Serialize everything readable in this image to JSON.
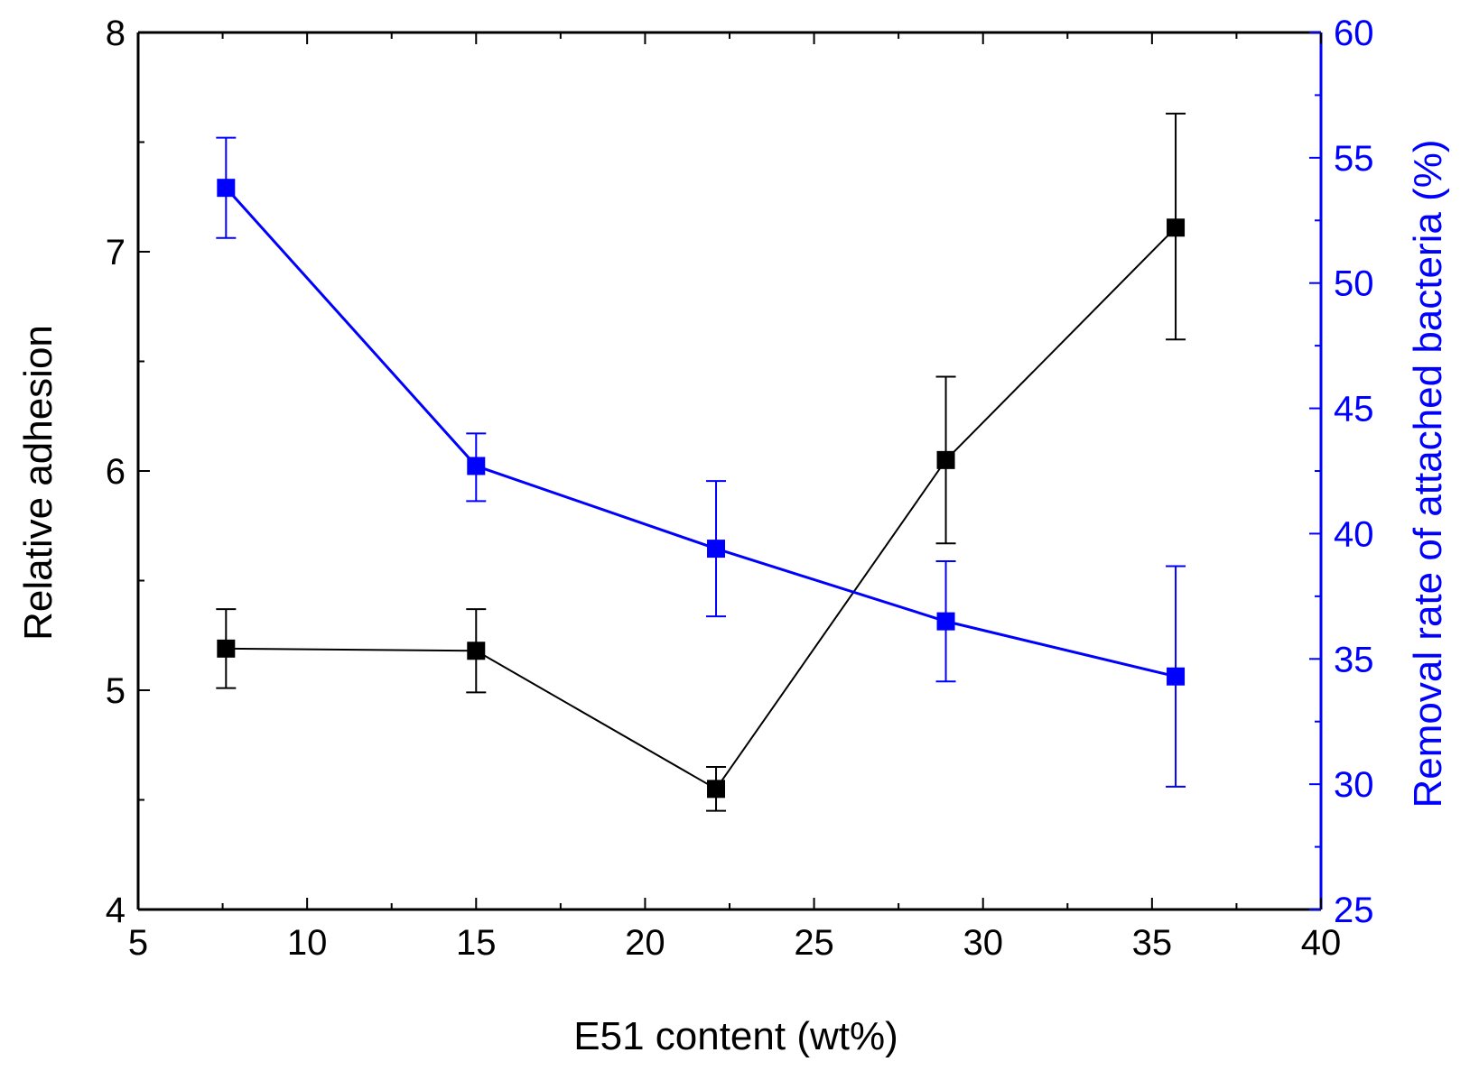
{
  "chart_data": {
    "type": "line",
    "title": "",
    "xlabel": "E51 content (wt%)",
    "ylabel_left": "Relative adhesion",
    "ylabel_right": "Removal rate of attached bacteria (%)",
    "xlim": [
      5,
      40
    ],
    "ylim_left": [
      4,
      8
    ],
    "ylim_right": [
      25,
      60
    ],
    "x_ticks": [
      "5",
      "10",
      "15",
      "20",
      "25",
      "30",
      "35",
      "40"
    ],
    "y_left_ticks": [
      "4",
      "5",
      "6",
      "7",
      "8"
    ],
    "y_right_ticks": [
      "25",
      "30",
      "35",
      "40",
      "45",
      "50",
      "55",
      "60"
    ],
    "grid": false,
    "legend": "none",
    "series": [
      {
        "name": "Relative adhesion",
        "axis": "left",
        "color": "#000000",
        "marker": "square",
        "x": [
          7.6,
          15.0,
          22.1,
          28.9,
          35.7
        ],
        "y": [
          5.19,
          5.18,
          4.55,
          6.05,
          7.11
        ],
        "err_low": [
          5.01,
          4.99,
          4.45,
          5.67,
          6.6
        ],
        "err_high": [
          5.37,
          5.37,
          4.65,
          6.43,
          7.63
        ]
      },
      {
        "name": "Removal rate of attached bacteria",
        "axis": "right",
        "color": "#0000ff",
        "marker": "square",
        "x": [
          7.6,
          15.0,
          22.1,
          28.9,
          35.7
        ],
        "y": [
          53.8,
          42.7,
          39.4,
          36.5,
          34.3
        ],
        "err_low": [
          51.8,
          41.3,
          36.7,
          34.1,
          29.9
        ],
        "err_high": [
          55.8,
          44.0,
          42.1,
          38.9,
          38.7
        ]
      }
    ]
  }
}
